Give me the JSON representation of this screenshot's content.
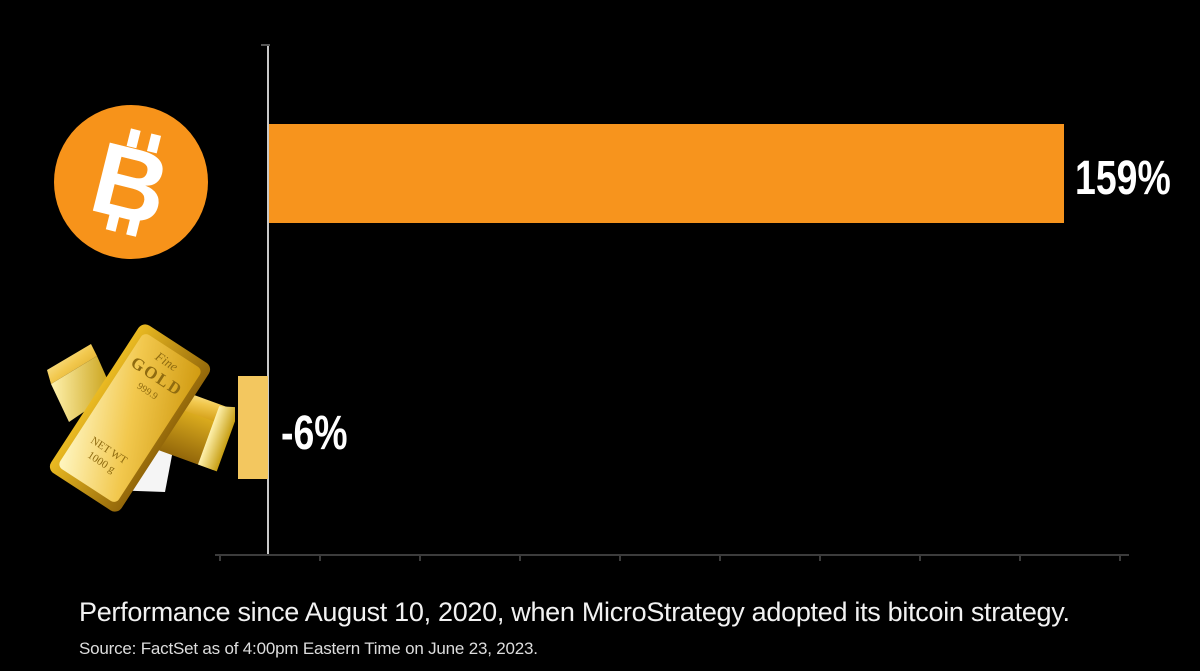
{
  "chart_data": {
    "type": "bar",
    "orientation": "horizontal",
    "title": "",
    "categories": [
      "Bitcoin",
      "Gold"
    ],
    "series": [
      {
        "name": "Performance since August 10, 2020",
        "values": [
          159,
          -6
        ]
      }
    ],
    "value_labels": [
      "159%",
      "-6%"
    ],
    "value_axis": {
      "unit": "%",
      "min": -10,
      "max": 172,
      "tick_count": 10,
      "tick_spacing_px": 100,
      "tick_labels_visible": false,
      "gridlines": false
    },
    "bar_colors": {
      "bitcoin": "#f7941d",
      "gold": "#f3c75f"
    },
    "legend": "none",
    "background": "#000000",
    "caption": "Performance since August 10, 2020, when MicroStrategy adopted its bitcoin strategy.",
    "source": "Source: FactSet as of 4:00pm Eastern Time on June 23, 2023."
  },
  "icons": {
    "bitcoin": {
      "symbol": "B",
      "color": "#f7931a"
    },
    "gold": {
      "engraving_line1": "Fine",
      "engraving_line2": "GOLD",
      "engraving_line3": "999.9",
      "engraving_line4": "NET WT",
      "engraving_line5": "1000 g"
    }
  }
}
